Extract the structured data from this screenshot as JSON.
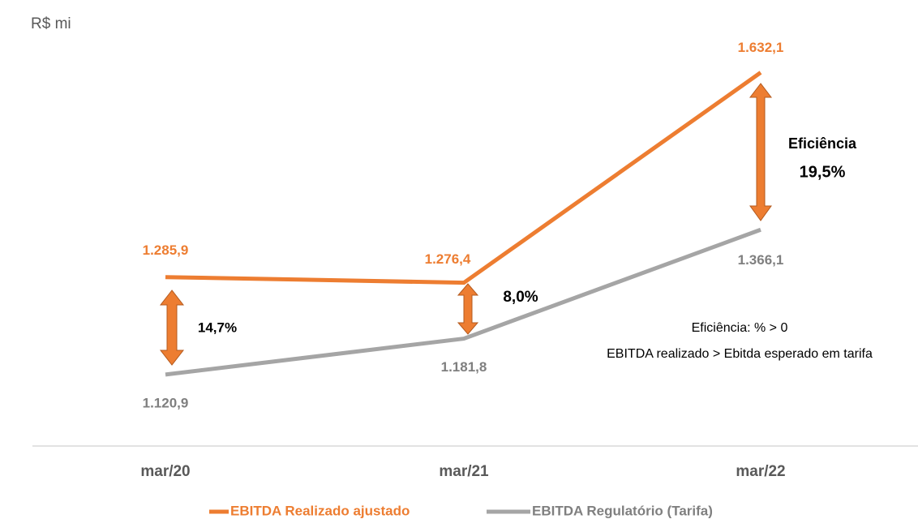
{
  "chart_data": {
    "type": "line",
    "subtitle": "R$ mi",
    "categories": [
      "mar/20",
      "mar/21",
      "mar/22"
    ],
    "series": [
      {
        "name": "EBITDA Realizado ajustado",
        "color": "#ed7d31",
        "values": [
          1285.9,
          1276.4,
          1632.1
        ],
        "value_labels": [
          "1.285,9",
          "1.276,4",
          "1.632,1"
        ]
      },
      {
        "name": "EBITDA Regulatório (Tarifa)",
        "color": "#a5a5a5",
        "values": [
          1120.9,
          1181.8,
          1366.1
        ],
        "value_labels": [
          "1.120,9",
          "1.181,8",
          "1.366,1"
        ]
      }
    ],
    "ylim": [
      1000,
      1700
    ],
    "annotations": [
      "14,7%",
      "8,0%",
      "Eficiência",
      "19,5%",
      "Eficiência: % > 0",
      "EBITDA realizado > Ebitda esperado em tarifa"
    ],
    "legend": "bottom"
  }
}
